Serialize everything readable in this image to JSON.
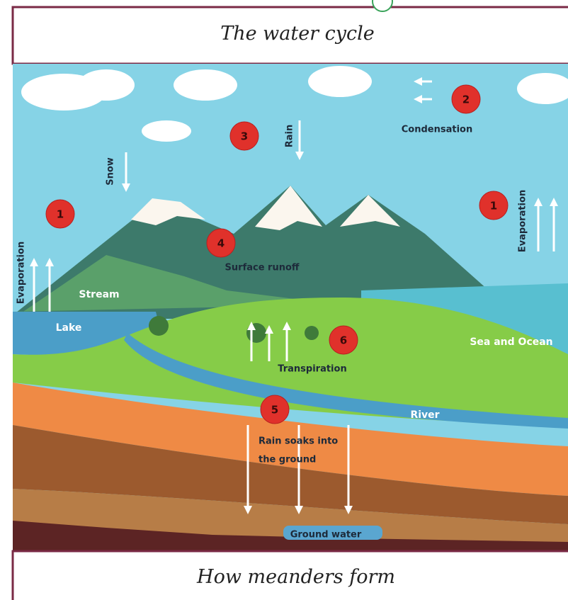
{
  "header": {
    "title": "The water cycle"
  },
  "footer": {
    "title": "How meanders form"
  },
  "markers": [
    {
      "number": "1"
    },
    {
      "number": "2"
    },
    {
      "number": "3"
    },
    {
      "number": "1"
    },
    {
      "number": "4"
    },
    {
      "number": "6"
    },
    {
      "number": "5"
    }
  ],
  "labels": [
    {
      "text": "Evaporation"
    },
    {
      "text": "Evaporation"
    },
    {
      "text": "Snow"
    },
    {
      "text": "Rain"
    },
    {
      "text": "Condensation"
    },
    {
      "text": "Surface runoff"
    },
    {
      "text": "Stream"
    },
    {
      "text": "Lake"
    },
    {
      "text": "Sea and Ocean"
    },
    {
      "text": "Transpiration"
    },
    {
      "text": "River"
    },
    {
      "text": "Rain soaks into"
    },
    {
      "text": "the ground"
    },
    {
      "text": "Ground water"
    }
  ]
}
